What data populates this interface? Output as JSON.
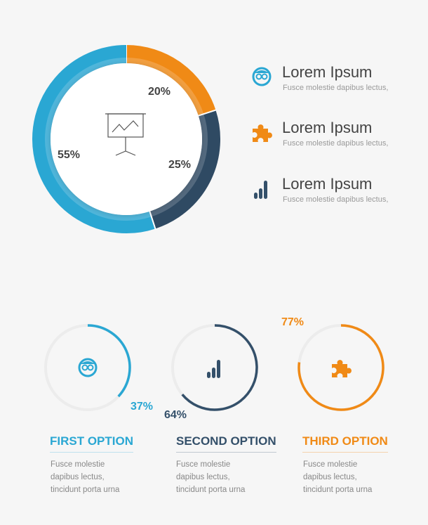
{
  "chart_data": [
    {
      "type": "pie",
      "variant": "donut",
      "categories": [
        "orange",
        "dark",
        "blue"
      ],
      "values": [
        20,
        25,
        55
      ],
      "labels": [
        "20%",
        "25%",
        "55%"
      ],
      "colors": [
        "#f08a16",
        "#2f4a63",
        "#2aa7d3"
      ],
      "center_icon": "presentation-board-icon"
    },
    {
      "type": "gauge",
      "items": [
        {
          "value": 37,
          "label": "37%",
          "color": "#2aa7d3",
          "icon": "owl-eyes-icon"
        },
        {
          "value": 64,
          "label": "64%",
          "color": "#34506a",
          "icon": "bar-chart-icon"
        },
        {
          "value": 77,
          "label": "77%",
          "color": "#f08a16",
          "icon": "puzzle-piece-icon"
        }
      ]
    }
  ],
  "legend": [
    {
      "title": "Lorem Ipsum",
      "subtitle": "Fusce molestie dapibus lectus,",
      "icon": "owl-eyes-icon",
      "color": "#2aa7d3"
    },
    {
      "title": "Lorem Ipsum",
      "subtitle": "Fusce molestie dapibus lectus,",
      "icon": "puzzle-piece-icon",
      "color": "#f08a16"
    },
    {
      "title": "Lorem Ipsum",
      "subtitle": "Fusce molestie dapibus lectus,",
      "icon": "bar-chart-icon",
      "color": "#34506a"
    }
  ],
  "options": [
    {
      "title": "FIRST OPTION",
      "line1": "Fusce molestie",
      "line2": "dapibus lectus,",
      "line3": "tincidunt porta urna",
      "color": "#2aa7d3"
    },
    {
      "title": "SECOND OPTION",
      "line1": "Fusce molestie",
      "line2": "dapibus lectus,",
      "line3": "tincidunt porta urna",
      "color": "#34506a"
    },
    {
      "title": "THIRD OPTION",
      "line1": "Fusce molestie",
      "line2": "dapibus lectus,",
      "line3": "tincidunt porta urna",
      "color": "#f08a16"
    }
  ]
}
